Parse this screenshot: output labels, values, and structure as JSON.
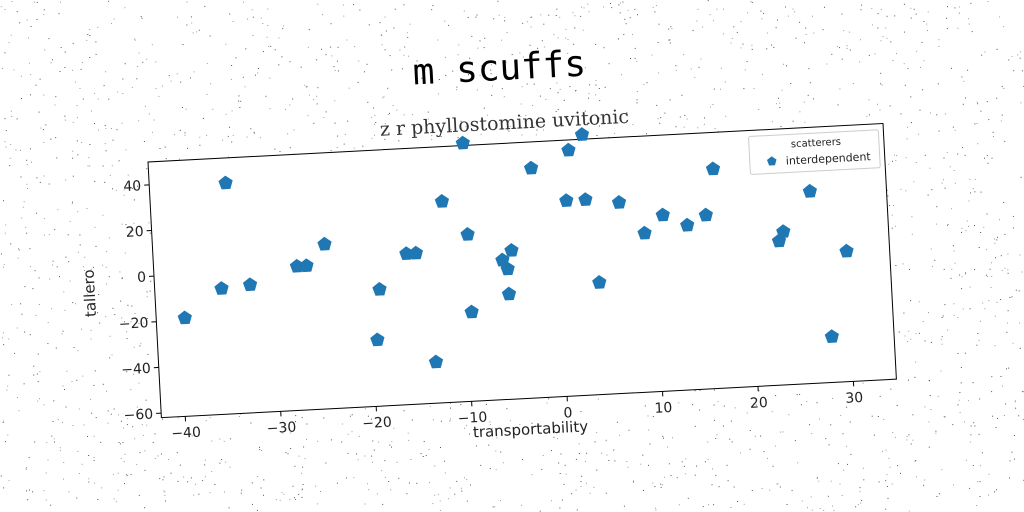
{
  "chart_data": {
    "type": "scatter",
    "title": "m scuffs",
    "subtitle": "z r phyllostomine uvitonic",
    "xlabel": "transportability",
    "ylabel": "tallero",
    "xlim": [
      -42.5,
      34.5
    ],
    "ylim": [
      -62,
      50
    ],
    "xticks": [
      -40,
      -30,
      -20,
      -10,
      0,
      10,
      20,
      30
    ],
    "yticks": [
      -60,
      -40,
      -20,
      0,
      20,
      40
    ],
    "grid": false,
    "legend": {
      "title": "scatterers",
      "position": "top-right"
    },
    "colors": {
      "series": "#1f77b4"
    },
    "series": [
      {
        "name": "interdependent",
        "marker": "pentagon",
        "points": [
          [
            -39.5,
            -19
          ],
          [
            -35.5,
            -7
          ],
          [
            -34.5,
            39
          ],
          [
            -32.5,
            -6
          ],
          [
            -27.5,
            1
          ],
          [
            -26.5,
            1
          ],
          [
            -24.5,
            10
          ],
          [
            -19.5,
            -33
          ],
          [
            -19,
            -11
          ],
          [
            -16,
            4
          ],
          [
            -15,
            4
          ],
          [
            -13.5,
            -44
          ],
          [
            -12,
            26
          ],
          [
            -9.5,
            51
          ],
          [
            -9.5,
            11
          ],
          [
            -9.5,
            -23
          ],
          [
            -6,
            -1
          ],
          [
            -5.5,
            -5
          ],
          [
            -5.5,
            -16
          ],
          [
            -5,
            3
          ],
          [
            -2.5,
            38.5
          ],
          [
            1,
            23.5
          ],
          [
            1.5,
            45.5
          ],
          [
            3,
            52
          ],
          [
            3,
            23.5
          ],
          [
            4,
            -13
          ],
          [
            6.5,
            21.5
          ],
          [
            9,
            7.5
          ],
          [
            11,
            15
          ],
          [
            13.5,
            10
          ],
          [
            15.5,
            14
          ],
          [
            16.5,
            34
          ],
          [
            23,
            1
          ],
          [
            23.5,
            5
          ],
          [
            26.5,
            42
          ],
          [
            26.5,
            22
          ],
          [
            28,
            -42
          ],
          [
            30,
            -5
          ]
        ]
      }
    ]
  }
}
